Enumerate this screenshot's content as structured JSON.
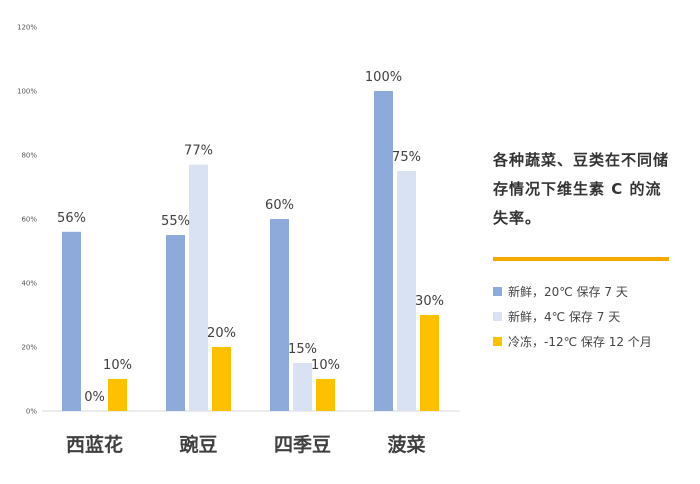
{
  "chart_data": {
    "type": "bar",
    "categories": [
      "西蓝花",
      "豌豆",
      "四季豆",
      "菠菜"
    ],
    "series": [
      {
        "name": "新鲜，20℃ 保存 7 天",
        "values": [
          56,
          55,
          60,
          100
        ],
        "labels": [
          "56%",
          "55%",
          "60%",
          "100%"
        ],
        "color": "#8eaadb"
      },
      {
        "name": "新鲜，4℃ 保存 7 天",
        "values": [
          0,
          77,
          15,
          75
        ],
        "labels": [
          "0%",
          "77%",
          "15%",
          "75%"
        ],
        "color": "#d9e2f3"
      },
      {
        "name": "冷冻，-12℃ 保存 12 个月",
        "values": [
          10,
          20,
          10,
          30
        ],
        "labels": [
          "10%",
          "20%",
          "10%",
          "30%"
        ],
        "color": "#ffc000"
      }
    ],
    "yticks": [
      "0%",
      "20%",
      "40%",
      "60%",
      "80%",
      "100%",
      "120%"
    ],
    "ylim": [
      0,
      120
    ],
    "title": "各种蔬菜、豆类在不同储存情况下维生素 C 的流失率。",
    "grid": false,
    "legend_position": "right"
  },
  "colors": {
    "accent_rule": "#f5a800"
  }
}
